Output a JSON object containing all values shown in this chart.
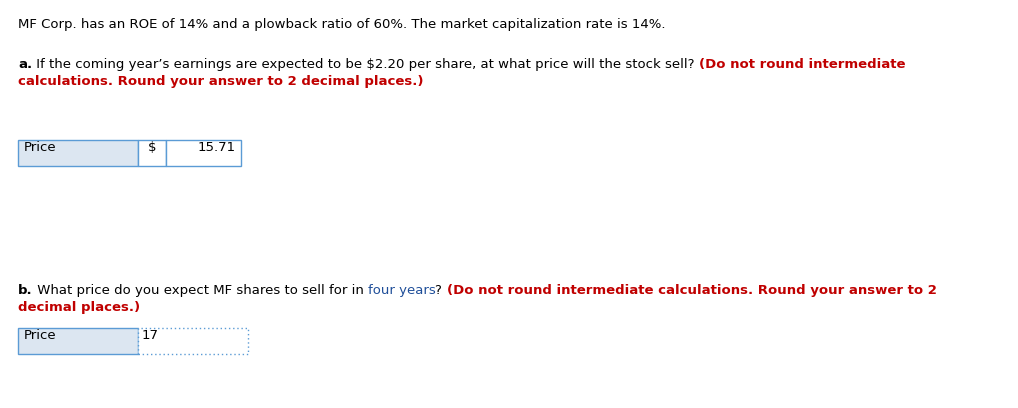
{
  "background_color": "#ffffff",
  "header_text": "MF Corp. has an ROE of 14% and a plowback ratio of 60%. The market capitalization rate is 14%.",
  "header_color": "#000000",
  "header_fontsize": 9.5,
  "part_a_bold": "a.",
  "part_a_black": " If the coming year’s earnings are expected to be $2.20 per share, at what price will the stock sell? ",
  "part_a_red": "(Do not round intermediate",
  "part_a_red2": "calculations. Round your answer to 2 decimal places.)",
  "part_a_red_color": "#c00000",
  "part_b_bold": "b.",
  "part_b_black": " What price do you expect MF shares to sell for in ",
  "part_b_blue": "four years",
  "part_b_black2": "? ",
  "part_b_red": "(Do not round intermediate calculations. Round your answer to 2",
  "part_b_red2": "decimal places.)",
  "part_b_blue_color": "#1f4e99",
  "part_b_red_color": "#c00000",
  "black_color": "#000000",
  "label_a": "Price",
  "currency_a": "$",
  "value_a": "15.71",
  "label_b": "Price",
  "value_b": "17",
  "box_border_color": "#5b9bd5",
  "box_label_bg": "#dce6f1",
  "box_value_bg": "#ffffff",
  "fontsize": 9.5,
  "dpi": 100,
  "fig_w": 10.18,
  "fig_h": 4.08
}
